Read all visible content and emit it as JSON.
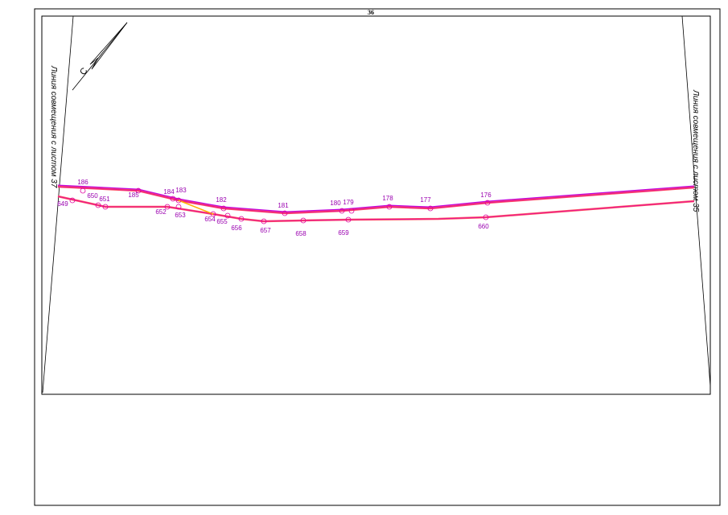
{
  "sheet_number": "36",
  "north_label": "С",
  "match_lines": {
    "left": "Линия совмещения с листом 37",
    "right": "Линия совмещения с листом 35"
  },
  "points": {
    "top_line": [
      "186",
      "185",
      "184",
      "183",
      "182",
      "181",
      "180",
      "179",
      "178",
      "177",
      "176"
    ],
    "bottom_line": [
      "649",
      "650",
      "651",
      "652",
      "653",
      "654",
      "655",
      "656",
      "657",
      "658",
      "659",
      "660"
    ]
  }
}
